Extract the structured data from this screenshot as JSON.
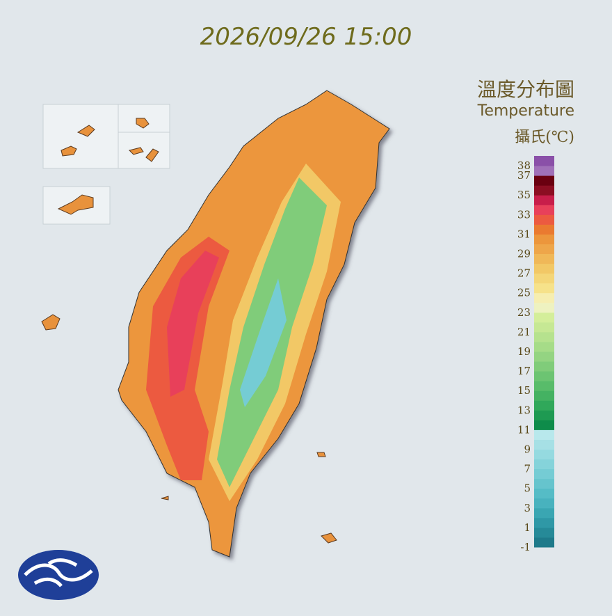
{
  "header": {
    "timestamp": "2026/09/26 15:00",
    "title": "溫度分布圖",
    "subtitle": "Temperature",
    "unit": "攝氏(℃)"
  },
  "legend": {
    "range": [
      -1,
      39
    ],
    "ticks": [
      38,
      37,
      35,
      33,
      31,
      29,
      27,
      25,
      23,
      21,
      19,
      17,
      15,
      13,
      11,
      9,
      7,
      5,
      3,
      1,
      -1
    ],
    "colors": [
      "#1e7a8a",
      "#268a98",
      "#2f98a6",
      "#3aa6b2",
      "#48b2be",
      "#55bcc6",
      "#66c4cd",
      "#75ccd4",
      "#85d3da",
      "#95dae0",
      "#a6e0e5",
      "#b8e8ec",
      "#0e8c4a",
      "#1e9a52",
      "#30a85a",
      "#44b262",
      "#58bc6a",
      "#6cc472",
      "#80cc7a",
      "#94d482",
      "#a6dc88",
      "#b6e28e",
      "#c6e894",
      "#d4ee9a",
      "#eef2c0",
      "#f6eeb0",
      "#f6e28a",
      "#f4d678",
      "#f2c866",
      "#f0b858",
      "#eea64a",
      "#ec963c",
      "#ea7a30",
      "#ec5a40",
      "#e8405a",
      "#c81e4a",
      "#8c0e22",
      "#6a0010",
      "#a070b8",
      "#8a50a8"
    ]
  }
}
